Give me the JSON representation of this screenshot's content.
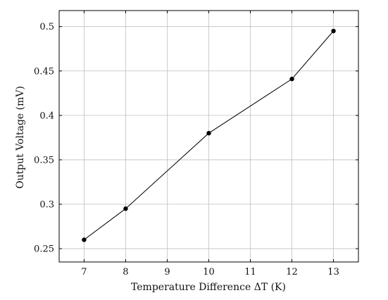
{
  "chart_data": {
    "type": "line",
    "xlabel": "Temperature Difference ΔT (K)",
    "ylabel": "Output Voltage (mV)",
    "x": [
      7,
      8,
      10,
      12,
      13
    ],
    "series": [
      {
        "values": [
          0.26,
          0.295,
          0.38,
          0.441,
          0.495
        ]
      }
    ],
    "xlim": [
      6.4,
      13.6
    ],
    "ylim": [
      0.235,
      0.518
    ],
    "xticks": [
      7,
      8,
      9,
      10,
      11,
      12,
      13
    ],
    "yticks": [
      0.25,
      0.3,
      0.35,
      0.4,
      0.45,
      0.5
    ],
    "xtick_labels": [
      "7",
      "8",
      "9",
      "10",
      "11",
      "12",
      "13"
    ],
    "ytick_labels": [
      "0.25",
      "0.3",
      "0.35",
      "0.4",
      "0.45",
      "0.5"
    ],
    "grid": true,
    "marker": "filled-circle",
    "colors": {
      "line": "#000000",
      "marker": "#000000",
      "grid": "#bfbfbf",
      "frame": "#000000"
    }
  }
}
